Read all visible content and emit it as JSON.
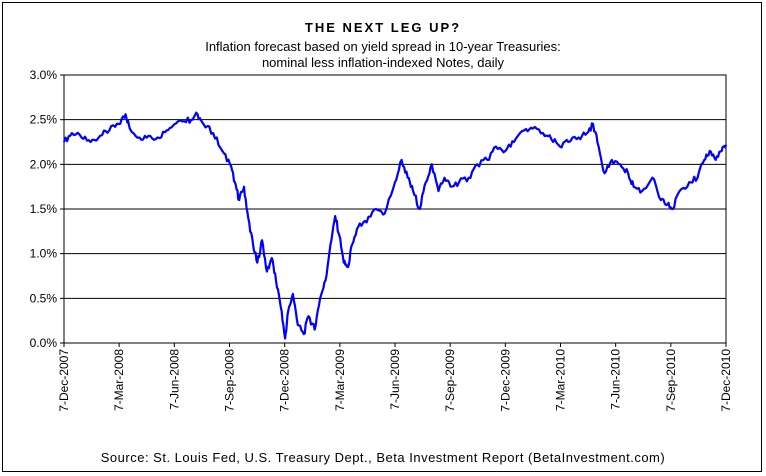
{
  "chart_data": {
    "type": "line",
    "title": "THE NEXT LEG UP?",
    "subtitle_lines": [
      "Inflation forecast based on yield spread in 10-year Treasuries:",
      "nominal less inflation-indexed Notes, daily"
    ],
    "source": "Source: St. Louis Fed, U.S. Treasury Dept., Beta Investment Report (BetaInvestment.com)",
    "x_tick_labels": [
      "7-Dec-2007",
      "7-Mar-2008",
      "7-Jun-2008",
      "7-Sep-2008",
      "7-Dec-2008",
      "7-Mar-2009",
      "7-Jun-2009",
      "7-Sep-2009",
      "7-Dec-2009",
      "7-Mar-2010",
      "7-Jun-2010",
      "7-Sep-2010",
      "7-Dec-2010"
    ],
    "y_tick_labels": [
      "0.0%",
      "0.5%",
      "1.0%",
      "1.5%",
      "2.0%",
      "2.5%",
      "3.0%"
    ],
    "ylim": [
      0,
      3.0
    ],
    "xlim": [
      "2007-12-07",
      "2010-12-07"
    ],
    "grid": "horizontal",
    "series_color": "#0000ff",
    "series": [
      {
        "points": [
          [
            "2007-12-07",
            2.25
          ],
          [
            "2007-12-20",
            2.35
          ],
          [
            "2008-01-05",
            2.3
          ],
          [
            "2008-01-20",
            2.25
          ],
          [
            "2008-02-05",
            2.32
          ],
          [
            "2008-02-20",
            2.38
          ],
          [
            "2008-03-07",
            2.45
          ],
          [
            "2008-03-18",
            2.56
          ],
          [
            "2008-03-25",
            2.4
          ],
          [
            "2008-04-10",
            2.3
          ],
          [
            "2008-04-25",
            2.32
          ],
          [
            "2008-05-10",
            2.3
          ],
          [
            "2008-05-25",
            2.38
          ],
          [
            "2008-06-07",
            2.45
          ],
          [
            "2008-06-20",
            2.48
          ],
          [
            "2008-07-05",
            2.5
          ],
          [
            "2008-07-15",
            2.56
          ],
          [
            "2008-07-25",
            2.45
          ],
          [
            "2008-08-10",
            2.35
          ],
          [
            "2008-08-25",
            2.15
          ],
          [
            "2008-09-07",
            2.0
          ],
          [
            "2008-09-15",
            1.8
          ],
          [
            "2008-09-22",
            1.6
          ],
          [
            "2008-09-30",
            1.75
          ],
          [
            "2008-10-07",
            1.4
          ],
          [
            "2008-10-15",
            1.1
          ],
          [
            "2008-10-22",
            0.9
          ],
          [
            "2008-10-30",
            1.15
          ],
          [
            "2008-11-07",
            0.8
          ],
          [
            "2008-11-15",
            0.95
          ],
          [
            "2008-11-22",
            0.7
          ],
          [
            "2008-11-30",
            0.4
          ],
          [
            "2008-12-07",
            0.05
          ],
          [
            "2008-12-12",
            0.35
          ],
          [
            "2008-12-20",
            0.55
          ],
          [
            "2008-12-28",
            0.2
          ],
          [
            "2009-01-07",
            0.1
          ],
          [
            "2009-01-15",
            0.3
          ],
          [
            "2009-01-25",
            0.15
          ],
          [
            "2009-02-03",
            0.5
          ],
          [
            "2009-02-12",
            0.7
          ],
          [
            "2009-02-20",
            1.1
          ],
          [
            "2009-02-28",
            1.42
          ],
          [
            "2009-03-07",
            1.2
          ],
          [
            "2009-03-14",
            0.9
          ],
          [
            "2009-03-21",
            0.85
          ],
          [
            "2009-03-28",
            1.1
          ],
          [
            "2009-04-07",
            1.3
          ],
          [
            "2009-04-21",
            1.35
          ],
          [
            "2009-05-07",
            1.5
          ],
          [
            "2009-05-21",
            1.45
          ],
          [
            "2009-06-07",
            1.8
          ],
          [
            "2009-06-18",
            2.05
          ],
          [
            "2009-06-28",
            1.85
          ],
          [
            "2009-07-07",
            1.7
          ],
          [
            "2009-07-18",
            1.5
          ],
          [
            "2009-07-28",
            1.8
          ],
          [
            "2009-08-07",
            2.0
          ],
          [
            "2009-08-18",
            1.7
          ],
          [
            "2009-08-28",
            1.85
          ],
          [
            "2009-09-07",
            1.75
          ],
          [
            "2009-09-21",
            1.8
          ],
          [
            "2009-10-07",
            1.85
          ],
          [
            "2009-10-21",
            2.0
          ],
          [
            "2009-11-07",
            2.05
          ],
          [
            "2009-11-21",
            2.2
          ],
          [
            "2009-12-07",
            2.15
          ],
          [
            "2009-12-21",
            2.25
          ],
          [
            "2010-01-07",
            2.38
          ],
          [
            "2010-01-21",
            2.4
          ],
          [
            "2010-02-07",
            2.35
          ],
          [
            "2010-02-21",
            2.28
          ],
          [
            "2010-03-07",
            2.2
          ],
          [
            "2010-03-21",
            2.25
          ],
          [
            "2010-04-07",
            2.3
          ],
          [
            "2010-04-21",
            2.35
          ],
          [
            "2010-05-01",
            2.45
          ],
          [
            "2010-05-10",
            2.2
          ],
          [
            "2010-05-20",
            1.9
          ],
          [
            "2010-06-01",
            2.05
          ],
          [
            "2010-06-15",
            2.0
          ],
          [
            "2010-06-28",
            1.9
          ],
          [
            "2010-07-07",
            1.75
          ],
          [
            "2010-07-21",
            1.7
          ],
          [
            "2010-08-07",
            1.85
          ],
          [
            "2010-08-21",
            1.6
          ],
          [
            "2010-09-01",
            1.55
          ],
          [
            "2010-09-10",
            1.5
          ],
          [
            "2010-09-21",
            1.7
          ],
          [
            "2010-10-07",
            1.8
          ],
          [
            "2010-10-21",
            1.85
          ],
          [
            "2010-11-01",
            2.05
          ],
          [
            "2010-11-10",
            2.15
          ],
          [
            "2010-11-20",
            2.05
          ],
          [
            "2010-11-30",
            2.15
          ],
          [
            "2010-12-07",
            2.22
          ]
        ]
      }
    ]
  }
}
